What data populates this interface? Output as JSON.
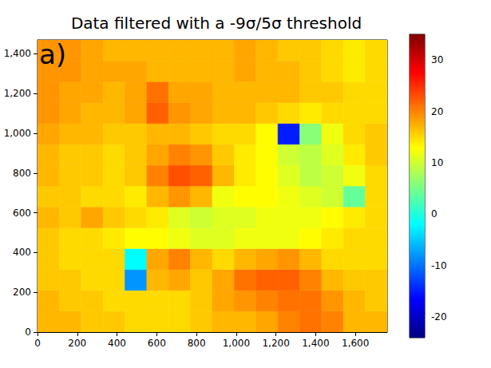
{
  "chart_data": {
    "type": "heatmap",
    "title": "Data filtered with a -9σ/5σ threshold",
    "annotations": [
      "a)"
    ],
    "x_edges": [
      0,
      110,
      220,
      330,
      440,
      550,
      660,
      770,
      880,
      990,
      1100,
      1210,
      1320,
      1430,
      1540,
      1650,
      1760
    ],
    "y_edges": [
      0,
      105,
      210,
      315,
      420,
      525,
      630,
      735,
      840,
      945,
      1050,
      1155,
      1260,
      1365,
      1470
    ],
    "cells": [
      [
        17,
        17,
        16,
        16,
        15,
        15,
        15,
        16,
        17,
        17,
        18,
        20,
        21,
        20,
        17,
        17
      ],
      [
        17,
        16,
        16,
        15,
        15,
        15,
        15,
        16,
        18,
        19,
        20,
        21,
        21,
        19,
        17,
        16
      ],
      [
        16,
        16,
        15,
        15,
        -8,
        17,
        18,
        16,
        18,
        21,
        22,
        22,
        20,
        17,
        16,
        16
      ],
      [
        16,
        15,
        15,
        15,
        -2,
        18,
        20,
        17,
        15,
        17,
        18,
        19,
        17,
        15,
        15,
        15
      ],
      [
        16,
        15,
        15,
        14,
        13,
        13,
        12,
        11,
        11,
        12,
        12,
        12,
        13,
        14,
        15,
        15
      ],
      [
        17,
        16,
        18,
        16,
        15,
        14,
        11,
        10,
        11,
        11,
        12,
        12,
        12,
        13,
        14,
        15
      ],
      [
        16,
        16,
        15,
        15,
        14,
        17,
        19,
        17,
        12,
        13,
        13,
        12,
        11,
        10,
        4,
        15
      ],
      [
        17,
        16,
        16,
        15,
        16,
        20,
        23,
        22,
        17,
        14,
        13,
        11,
        9,
        10,
        12,
        15
      ],
      [
        17,
        16,
        16,
        15,
        16,
        18,
        20,
        19,
        16,
        14,
        13,
        10,
        9,
        11,
        14,
        16
      ],
      [
        18,
        17,
        17,
        16,
        16,
        17,
        17,
        16,
        15,
        15,
        13,
        -15,
        6,
        12,
        15,
        16
      ],
      [
        19,
        18,
        17,
        17,
        18,
        22,
        19,
        18,
        17,
        17,
        16,
        15,
        14,
        15,
        15,
        15
      ],
      [
        19,
        18,
        18,
        17,
        18,
        21,
        18,
        18,
        17,
        17,
        17,
        17,
        16,
        16,
        15,
        15
      ],
      [
        19,
        19,
        18,
        18,
        18,
        17,
        17,
        17,
        17,
        18,
        17,
        17,
        16,
        15,
        14,
        15
      ],
      [
        19,
        19,
        18,
        17,
        17,
        17,
        17,
        17,
        17,
        18,
        17,
        16,
        16,
        15,
        14,
        15
      ]
    ],
    "xlim": [
      0,
      1760
    ],
    "ylim": [
      0,
      1470
    ],
    "xticks": [
      0,
      200,
      400,
      600,
      800,
      1000,
      1200,
      1400,
      1600
    ],
    "yticks": [
      0,
      200,
      400,
      600,
      800,
      1000,
      1200,
      1400
    ],
    "clim": [
      -24,
      35
    ],
    "cticks": [
      -20,
      -10,
      0,
      10,
      20,
      30
    ],
    "grid": false
  }
}
